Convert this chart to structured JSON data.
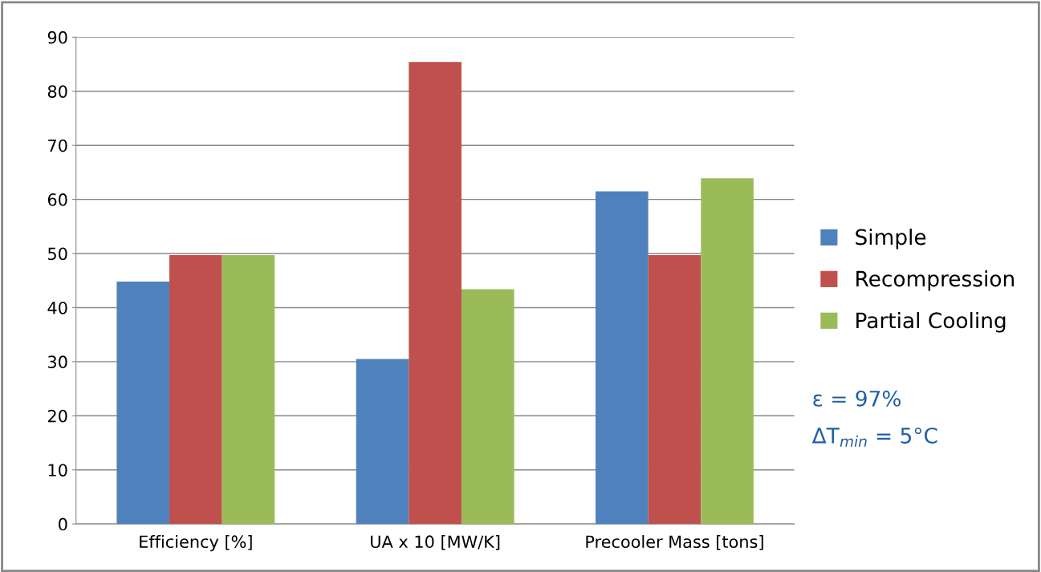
{
  "chart_data": {
    "type": "bar",
    "categories": [
      "Efficiency [%]",
      "UA x 10 [MW/K]",
      "Precooler Mass [tons]"
    ],
    "series": [
      {
        "name": "Simple",
        "color": "#4f81bd",
        "values": [
          44.8,
          30.5,
          61.5
        ]
      },
      {
        "name": "Recompression",
        "color": "#c0504d",
        "values": [
          49.7,
          85.4,
          49.7
        ]
      },
      {
        "name": "Partial Cooling",
        "color": "#9bbb59",
        "values": [
          49.7,
          43.4,
          63.9
        ]
      }
    ],
    "ylim": [
      0,
      90
    ],
    "yticks": [
      0,
      10,
      20,
      30,
      40,
      50,
      60,
      70,
      80,
      90
    ],
    "grid": "y",
    "legend": "right",
    "annotations": [
      "ε = 97%",
      "ΔT$_{min}$ = 5°C"
    ]
  }
}
